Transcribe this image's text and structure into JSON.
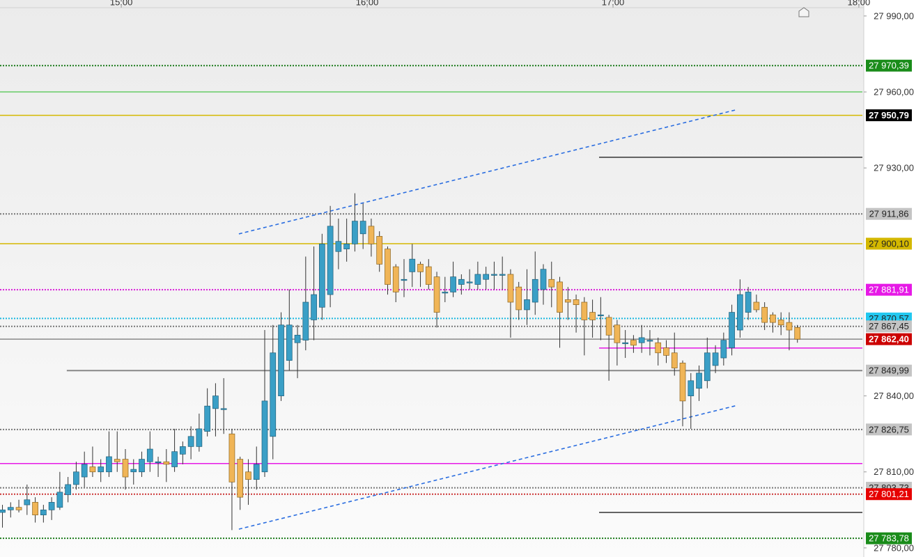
{
  "chart_data": {
    "type": "candlestick",
    "xlim": [
      870.4,
      1081.2
    ],
    "ylim": [
      27776.4,
      27996.3
    ],
    "xticks": [
      {
        "value": 900,
        "label": "15:00"
      },
      {
        "value": 960,
        "label": "16:00"
      },
      {
        "value": 1020,
        "label": "17:00"
      },
      {
        "value": 1080,
        "label": "18:00"
      }
    ],
    "yticks": [
      {
        "value": 27990,
        "label": "27 990,00"
      },
      {
        "value": 27960,
        "label": "27 960,00"
      },
      {
        "value": 27930,
        "label": "27 930,00"
      },
      {
        "value": 27840,
        "label": "27 840,00"
      },
      {
        "value": 27810,
        "label": "27 810,00"
      },
      {
        "value": 27780,
        "label": "27 780,00"
      }
    ],
    "up_color": "#3a9fc6",
    "down_color": "#f0b557",
    "candles": {
      "x": [
        871,
        873,
        875,
        877,
        879,
        881,
        883,
        885,
        887,
        889,
        891,
        893,
        895,
        897,
        899,
        901,
        903,
        905,
        907,
        909,
        911,
        913,
        915,
        917,
        919,
        921,
        923,
        925,
        927,
        929,
        931,
        933,
        935,
        937,
        939,
        941,
        943,
        945,
        947,
        949,
        951,
        953,
        955,
        957,
        959,
        961,
        963,
        965,
        967,
        969,
        971,
        973,
        975,
        977,
        979,
        981,
        983,
        985,
        987,
        989,
        991,
        993,
        995,
        997,
        999,
        1001,
        1003,
        1005,
        1007,
        1009,
        1011,
        1013,
        1015,
        1017,
        1019,
        1021,
        1023,
        1025,
        1027,
        1029,
        1031,
        1033,
        1035,
        1037,
        1039,
        1041,
        1043,
        1045,
        1047,
        1049,
        1051,
        1053,
        1055,
        1057,
        1059,
        1061,
        1063,
        1065
      ],
      "open": [
        27794,
        27795,
        27796,
        27797,
        27798,
        27793,
        27795,
        27796,
        27801,
        27805,
        27808,
        27812,
        27810,
        27810,
        27815,
        27815,
        27810,
        27810,
        27814,
        27814,
        27814,
        27812,
        27817,
        27820,
        27820,
        27826,
        27835,
        27835,
        27825,
        27815,
        27810,
        27807,
        27810,
        27824,
        27840,
        27854,
        27861,
        27862,
        27870,
        27875,
        27880,
        27897,
        27898,
        27900,
        27904,
        27907,
        27903,
        27898,
        27891,
        27886,
        27889,
        27892,
        27891,
        27887,
        27881,
        27881,
        27884,
        27885,
        27884,
        27886,
        27888,
        27888,
        27888,
        27883,
        27874,
        27877,
        27882,
        27886,
        27885,
        27878,
        27878,
        27877,
        27873,
        27872,
        27871,
        27868,
        27861,
        27862,
        27861,
        27862,
        27861,
        27859,
        27857,
        27853,
        27840,
        27843,
        27846,
        27852,
        27855,
        27859,
        27866,
        27873,
        27877,
        27875,
        27872,
        27870,
        27869,
        27867
      ],
      "high": [
        27797,
        27798,
        27799,
        27805,
        27800,
        27797,
        27800,
        27810,
        27808,
        27814,
        27818,
        27820,
        27815,
        27826,
        27826,
        27819,
        27815,
        27818,
        27826,
        27816,
        27819,
        27827,
        27822,
        27828,
        27833,
        27843,
        27845,
        27847,
        27827,
        27816,
        27815,
        27820,
        27866,
        27868,
        27873,
        27882,
        27868,
        27895,
        27899,
        27904,
        27915,
        27910,
        27910,
        27920,
        27916,
        27910,
        27905,
        27899,
        27892,
        27894,
        27900,
        27893,
        27894,
        27889,
        27887,
        27893,
        27888,
        27890,
        27893,
        27891,
        27893,
        27895,
        27890,
        27885,
        27890,
        27897,
        27892,
        27893,
        27887,
        27883,
        27880,
        27879,
        27878,
        27879,
        27872,
        27870,
        27866,
        27864,
        27868,
        27866,
        27863,
        27862,
        27865,
        27854,
        27849,
        27852,
        27863,
        27860,
        27865,
        27876,
        27886,
        27883,
        27880,
        27877,
        27873,
        27873,
        27873,
        27868
      ],
      "low": [
        27788,
        27792,
        27794,
        27793,
        27790,
        27790,
        27791,
        27795,
        27798,
        27803,
        27804,
        27808,
        27806,
        27808,
        27810,
        27803,
        27805,
        27808,
        27810,
        27808,
        27806,
        27810,
        27813,
        27815,
        27818,
        27824,
        27824,
        27825,
        27787,
        27795,
        27797,
        27803,
        27808,
        27815,
        27838,
        27850,
        27847,
        27858,
        27862,
        27870,
        27875,
        27890,
        27893,
        27897,
        27898,
        27895,
        27889,
        27880,
        27877,
        27879,
        27883,
        27883,
        27882,
        27867,
        27877,
        27879,
        27880,
        27882,
        27882,
        27882,
        27882,
        27882,
        27863,
        27870,
        27868,
        27872,
        27876,
        27875,
        27859,
        27870,
        27865,
        27856,
        27863,
        27862,
        27846,
        27852,
        27855,
        27857,
        27857,
        27856,
        27852,
        27853,
        27848,
        27828,
        27827,
        27838,
        27843,
        27849,
        27852,
        27856,
        27863,
        27870,
        27873,
        27866,
        27865,
        27864,
        27858,
        27861
      ],
      "close": [
        27795,
        27796,
        27795,
        27799,
        27793,
        27795,
        27798,
        27802,
        27805,
        27810,
        27813,
        27810,
        27812,
        27816,
        27814,
        27808,
        27811,
        27815,
        27819,
        27814,
        27813,
        27818,
        27820,
        27824,
        27827,
        27836,
        27840,
        27835,
        27806,
        27800,
        27807,
        27813,
        27838,
        27857,
        27868,
        27868,
        27864,
        27877,
        27880,
        27900,
        27907,
        27901,
        27900,
        27909,
        27909,
        27900,
        27892,
        27884,
        27881,
        27886,
        27894,
        27889,
        27884,
        27873,
        27881,
        27887,
        27886,
        27885,
        27888,
        27888,
        27888,
        27888,
        27877,
        27874,
        27878,
        27886,
        27890,
        27883,
        27873,
        27877,
        27876,
        27870,
        27870,
        27872,
        27864,
        27861,
        27861,
        27860,
        27863,
        27862,
        27857,
        27856,
        27851,
        27838,
        27846,
        27849,
        27857,
        27857,
        27862,
        27873,
        27880,
        27881,
        27874,
        27869,
        27869,
        27868,
        27866,
        27862.4
      ]
    },
    "levels": [
      {
        "value": 27970.39,
        "label": "27 970,39",
        "color": "#1a7a1a",
        "label_color": "#1a8c1a",
        "text_color": "#ffffff",
        "style": "dotted"
      },
      {
        "value": 27960,
        "color": "#66cc66",
        "style": "solid"
      },
      {
        "value": 27950.79,
        "label": "27 950,79",
        "color": "#d4b800",
        "label_color": "#000000",
        "text_color": "#ffffff",
        "style": "solid"
      },
      {
        "value": 27934.2,
        "color": "#333333",
        "style": "solid",
        "start": 1016.6
      },
      {
        "value": 27911.86,
        "label": "27 911,86",
        "color": "#777777",
        "label_color": "#c4c4c4",
        "text_color": "#222222",
        "style": "dotted"
      },
      {
        "value": 27900.1,
        "label": "27 900,10",
        "color": "#d4b800",
        "label_color": "#d4b800",
        "text_color": "#222222",
        "style": "solid"
      },
      {
        "value": 27881.91,
        "label": "27 881,91",
        "color": "#d91ad9",
        "label_color": "#e619e6",
        "text_color": "#ffffff",
        "style": "dotted"
      },
      {
        "value": 27870.57,
        "label": "27 870,57",
        "color": "#19b8e0",
        "label_color": "#22c8f0",
        "text_color": "#222222",
        "style": "dotted"
      },
      {
        "value": 27867.45,
        "label": "27 867,45",
        "color": "#777777",
        "label_color": "#c4c4c4",
        "text_color": "#222222",
        "style": "dotted"
      },
      {
        "value": 27862.4,
        "label": "27 862,40",
        "color": "#888888",
        "label_color": "#cc0000",
        "text_color": "#ffffff",
        "style": "solid"
      },
      {
        "value": 27858.9,
        "color": "#e619e6",
        "style": "solid",
        "start": 1016.6
      },
      {
        "value": 27849.99,
        "label": "27 849,99",
        "color": "#888888",
        "label_color": "#c4c4c4",
        "text_color": "#222222",
        "style": "solid",
        "start": 886.7
      },
      {
        "value": 27826.75,
        "label": "27 826,75",
        "color": "#777777",
        "label_color": "#c4c4c4",
        "text_color": "#222222",
        "style": "dotted"
      },
      {
        "value": 27813.3,
        "color": "#e619e6",
        "style": "solid"
      },
      {
        "value": 27803.73,
        "label": "27 803,73",
        "color": "#777777",
        "label_color": "#c4c4c4",
        "text_color": "#222222",
        "style": "dotted"
      },
      {
        "value": 27801.21,
        "label": "27 801,21",
        "color": "#cc3333",
        "label_color": "#e60000",
        "text_color": "#ffffff",
        "style": "dotted"
      },
      {
        "value": 27794,
        "color": "#333333",
        "style": "solid",
        "start": 1016.6
      },
      {
        "value": 27783.78,
        "label": "27 783,78",
        "color": "#1a7a1a",
        "label_color": "#1a8c1a",
        "text_color": "#ffffff",
        "style": "dotted"
      }
    ],
    "trendlines": [
      {
        "x": [
          928.7,
          1049.9
        ],
        "values": [
          27903.96,
          27952.9
        ],
        "color": "#2a6de0"
      },
      {
        "x": [
          928.7,
          1049.9
        ],
        "values": [
          27787.4,
          27836.1
        ],
        "color": "#2a6de0"
      }
    ]
  }
}
